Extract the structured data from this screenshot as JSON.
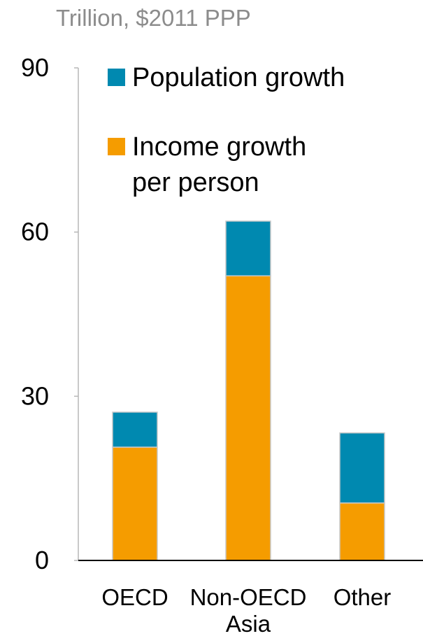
{
  "chart_data": {
    "type": "bar",
    "stacked": true,
    "unit_label": "Trillion, $2011 PPP",
    "categories": [
      [
        "OECD"
      ],
      [
        "Non-OECD",
        "Asia"
      ],
      [
        "Other"
      ]
    ],
    "series": [
      {
        "name": "Income growth per person",
        "color": "#f59c00",
        "values": [
          20.7,
          52,
          10.5
        ]
      },
      {
        "name": "Population growth",
        "color": "#0089b0",
        "values": [
          6.4,
          10,
          12.8
        ]
      }
    ],
    "legend": [
      {
        "lines": [
          "Population growth"
        ],
        "color": "#0089b0"
      },
      {
        "lines": [
          "Income growth",
          "per person"
        ],
        "color": "#f59c00"
      }
    ],
    "legend_position": "top-right",
    "ylim": [
      0,
      90
    ],
    "yticks": [
      0,
      30,
      60,
      90
    ],
    "grid": false
  }
}
